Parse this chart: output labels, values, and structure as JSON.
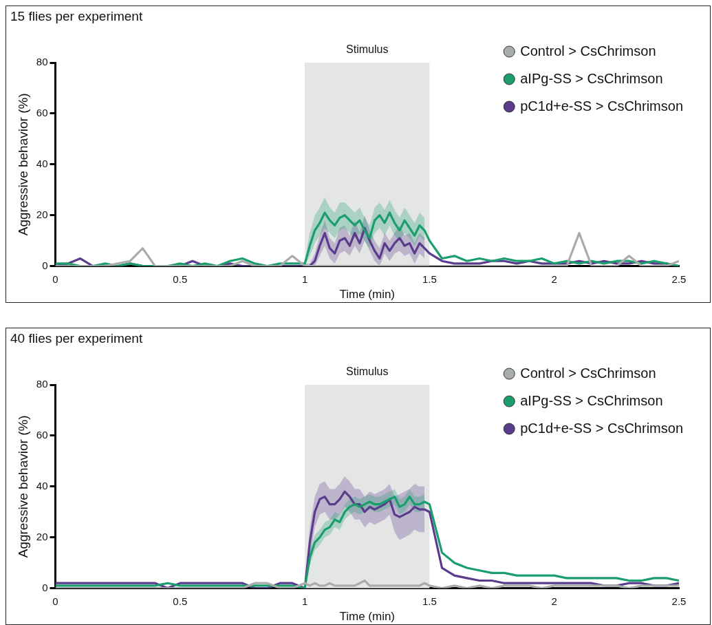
{
  "chart_data": [
    {
      "type": "line",
      "title": "15 flies per experiment",
      "xlabel": "Time (min)",
      "ylabel": "Aggressive behavior (%)",
      "x": [
        0,
        0.05,
        0.1,
        0.15,
        0.2,
        0.25,
        0.3,
        0.35,
        0.4,
        0.45,
        0.5,
        0.55,
        0.6,
        0.65,
        0.7,
        0.75,
        0.8,
        0.85,
        0.9,
        0.95,
        1,
        1.02,
        1.04,
        1.06,
        1.08,
        1.1,
        1.12,
        1.14,
        1.16,
        1.18,
        1.2,
        1.22,
        1.24,
        1.26,
        1.28,
        1.3,
        1.32,
        1.34,
        1.36,
        1.38,
        1.4,
        1.42,
        1.44,
        1.46,
        1.48,
        1.5,
        1.55,
        1.6,
        1.65,
        1.7,
        1.75,
        1.8,
        1.85,
        1.9,
        1.95,
        2,
        2.05,
        2.1,
        2.15,
        2.2,
        2.25,
        2.3,
        2.35,
        2.4,
        2.45,
        2.5
      ],
      "series": [
        {
          "name": "Control > CsChrimson",
          "color": "#a9ada9",
          "values": [
            0,
            0,
            0,
            0,
            0,
            1,
            2,
            7,
            0,
            0,
            0,
            0,
            0,
            0,
            0,
            2,
            0,
            0,
            0,
            4,
            0,
            0,
            0,
            0,
            0,
            0,
            0,
            0,
            0,
            0,
            0,
            0,
            0,
            0,
            0,
            0,
            0,
            0,
            0,
            0,
            0,
            0,
            0,
            0,
            0,
            0,
            0,
            0,
            0,
            0,
            0,
            0,
            0,
            0,
            0,
            0,
            0,
            13,
            0,
            0,
            0,
            4,
            0,
            0,
            0,
            2
          ]
        },
        {
          "name": "aIPg-SS > CsChrimson",
          "color": "#1a9e6e",
          "values": [
            1,
            1,
            0,
            0,
            1,
            0,
            1,
            0,
            0,
            0,
            1,
            0,
            1,
            0,
            2,
            3,
            1,
            0,
            1,
            1,
            1,
            8,
            14,
            17,
            21,
            18,
            16,
            19,
            20,
            18,
            16,
            18,
            14,
            11,
            18,
            20,
            17,
            21,
            17,
            14,
            18,
            15,
            12,
            16,
            14,
            10,
            3,
            4,
            2,
            3,
            2,
            3,
            2,
            2,
            3,
            1,
            2,
            1,
            2,
            1,
            2,
            2,
            1,
            2,
            1,
            0
          ],
          "lower": [
            null,
            null,
            null,
            null,
            null,
            null,
            null,
            null,
            null,
            null,
            null,
            null,
            null,
            null,
            null,
            null,
            null,
            null,
            null,
            null,
            0,
            4,
            9,
            12,
            15,
            13,
            11,
            14,
            15,
            13,
            11,
            13,
            10,
            7,
            13,
            15,
            12,
            16,
            12,
            10,
            13,
            11,
            8,
            12,
            10,
            null,
            null,
            null,
            null,
            null,
            null,
            null,
            null,
            null,
            null,
            null,
            null,
            null,
            null,
            null,
            null,
            null,
            null,
            null,
            null,
            null
          ],
          "upper": [
            null,
            null,
            null,
            null,
            null,
            null,
            null,
            null,
            null,
            null,
            null,
            null,
            null,
            null,
            null,
            null,
            null,
            null,
            null,
            null,
            2,
            13,
            20,
            23,
            27,
            23,
            21,
            25,
            25,
            23,
            21,
            23,
            19,
            16,
            23,
            25,
            22,
            26,
            22,
            19,
            23,
            20,
            17,
            21,
            19,
            null,
            null,
            null,
            null,
            null,
            null,
            null,
            null,
            null,
            null,
            null,
            null,
            null,
            null,
            null,
            null,
            null,
            null,
            null,
            null,
            null
          ]
        },
        {
          "name": "pC1d+e-SS > CsChrimson",
          "color": "#5b3b8c",
          "values": [
            0,
            1,
            3,
            0,
            0,
            0,
            1,
            0,
            0,
            0,
            0,
            2,
            0,
            0,
            1,
            0,
            0,
            0,
            0,
            0,
            0,
            0,
            2,
            8,
            13,
            7,
            5,
            10,
            11,
            8,
            13,
            9,
            15,
            10,
            6,
            3,
            9,
            6,
            9,
            11,
            8,
            9,
            5,
            9,
            7,
            5,
            2,
            1,
            1,
            1,
            2,
            2,
            1,
            2,
            1,
            1,
            1,
            2,
            1,
            2,
            1,
            1,
            2,
            1,
            1,
            0
          ],
          "lower": [
            null,
            null,
            null,
            null,
            null,
            null,
            null,
            null,
            null,
            null,
            null,
            null,
            null,
            null,
            null,
            null,
            null,
            null,
            null,
            null,
            0,
            0,
            0,
            4,
            8,
            3,
            1,
            5,
            6,
            4,
            8,
            5,
            10,
            6,
            2,
            0,
            5,
            2,
            5,
            6,
            4,
            5,
            1,
            5,
            3,
            null,
            null,
            null,
            null,
            null,
            null,
            null,
            null,
            null,
            null,
            null,
            null,
            null,
            null,
            null,
            null,
            null,
            null,
            null,
            null,
            null
          ],
          "upper": [
            null,
            null,
            null,
            null,
            null,
            null,
            null,
            null,
            null,
            null,
            null,
            null,
            null,
            null,
            null,
            null,
            null,
            null,
            null,
            null,
            1,
            1,
            5,
            12,
            18,
            11,
            9,
            15,
            16,
            12,
            18,
            13,
            20,
            14,
            10,
            7,
            13,
            10,
            13,
            16,
            12,
            13,
            9,
            13,
            11,
            null,
            null,
            null,
            null,
            null,
            null,
            null,
            null,
            null,
            null,
            null,
            null,
            null,
            null,
            null,
            null,
            null,
            null,
            null,
            null,
            null
          ]
        }
      ],
      "xlim": [
        0,
        2.5
      ],
      "xticks": [
        0,
        0.5,
        1,
        1.5,
        2,
        2.5
      ],
      "ylim": [
        0,
        80
      ],
      "yticks": [
        0,
        20,
        40,
        60,
        80
      ],
      "bands": [
        {
          "axis": "x",
          "from": 1,
          "to": 1.5,
          "label": "Stimulus",
          "color": "#e4e5e5"
        }
      ],
      "legend": "top right"
    },
    {
      "type": "line",
      "title": "40 flies per experiment",
      "xlabel": "Time (min)",
      "ylabel": "Aggressive behavior (%)",
      "x": [
        0,
        0.05,
        0.1,
        0.15,
        0.2,
        0.25,
        0.3,
        0.35,
        0.4,
        0.45,
        0.5,
        0.55,
        0.6,
        0.65,
        0.7,
        0.75,
        0.8,
        0.85,
        0.9,
        0.95,
        1,
        1.02,
        1.04,
        1.06,
        1.08,
        1.1,
        1.12,
        1.14,
        1.16,
        1.18,
        1.2,
        1.22,
        1.24,
        1.26,
        1.28,
        1.3,
        1.32,
        1.34,
        1.36,
        1.38,
        1.4,
        1.42,
        1.44,
        1.46,
        1.48,
        1.5,
        1.55,
        1.6,
        1.65,
        1.7,
        1.75,
        1.8,
        1.85,
        1.9,
        1.95,
        2,
        2.05,
        2.1,
        2.15,
        2.2,
        2.25,
        2.3,
        2.35,
        2.4,
        2.45,
        2.5
      ],
      "series": [
        {
          "name": "Control > CsChrimson",
          "color": "#a9ada9",
          "values": [
            0,
            0,
            0,
            0,
            0,
            0,
            0,
            0,
            0,
            0,
            0,
            0,
            0,
            0,
            0,
            0,
            2,
            2,
            0,
            0,
            2,
            1,
            2,
            1,
            1,
            2,
            1,
            1,
            1,
            1,
            1,
            2,
            3,
            1,
            1,
            1,
            1,
            1,
            1,
            1,
            1,
            1,
            1,
            1,
            2,
            1,
            0,
            1,
            0,
            1,
            0,
            1,
            1,
            1,
            0,
            1,
            1,
            1,
            1,
            1,
            1,
            0,
            1,
            1,
            1,
            1
          ]
        },
        {
          "name": "aIPg-SS > CsChrimson",
          "color": "#1a9e6e",
          "values": [
            1,
            1,
            1,
            1,
            1,
            1,
            1,
            1,
            1,
            2,
            1,
            1,
            1,
            1,
            1,
            1,
            1,
            1,
            1,
            1,
            0,
            12,
            18,
            20,
            23,
            24,
            27,
            26,
            30,
            32,
            33,
            32,
            33,
            34,
            33,
            33,
            34,
            35,
            36,
            32,
            33,
            36,
            33,
            33,
            34,
            33,
            14,
            10,
            8,
            7,
            6,
            6,
            5,
            5,
            5,
            5,
            4,
            4,
            4,
            4,
            4,
            3,
            3,
            4,
            4,
            3
          ],
          "lower": [
            null,
            null,
            null,
            null,
            null,
            null,
            null,
            null,
            null,
            null,
            null,
            null,
            null,
            null,
            null,
            null,
            null,
            null,
            null,
            null,
            0,
            9,
            15,
            17,
            20,
            21,
            24,
            23,
            27,
            29,
            30,
            29,
            30,
            31,
            30,
            30,
            31,
            32,
            33,
            29,
            30,
            33,
            30,
            30,
            31,
            null,
            null,
            null,
            null,
            null,
            null,
            null,
            null,
            null,
            null,
            null,
            null,
            null,
            null,
            null,
            null,
            null,
            null,
            null,
            null,
            null
          ],
          "upper": [
            null,
            null,
            null,
            null,
            null,
            null,
            null,
            null,
            null,
            null,
            null,
            null,
            null,
            null,
            null,
            null,
            null,
            null,
            null,
            null,
            1,
            15,
            21,
            23,
            26,
            27,
            30,
            29,
            33,
            35,
            36,
            35,
            36,
            37,
            36,
            36,
            37,
            38,
            39,
            35,
            36,
            39,
            36,
            36,
            37,
            null,
            null,
            null,
            null,
            null,
            null,
            null,
            null,
            null,
            null,
            null,
            null,
            null,
            null,
            null,
            null,
            null,
            null,
            null,
            null,
            null
          ]
        },
        {
          "name": "pC1d+e-SS > CsChrimson",
          "color": "#5b3b8c",
          "values": [
            2,
            2,
            2,
            2,
            2,
            2,
            2,
            2,
            2,
            0,
            2,
            2,
            2,
            2,
            2,
            2,
            0,
            0,
            2,
            2,
            0,
            18,
            30,
            35,
            36,
            33,
            33,
            35,
            38,
            36,
            33,
            33,
            30,
            32,
            31,
            32,
            33,
            35,
            29,
            28,
            29,
            30,
            32,
            31,
            31,
            30,
            8,
            5,
            4,
            3,
            3,
            2,
            2,
            2,
            2,
            2,
            2,
            2,
            2,
            1,
            1,
            2,
            2,
            1,
            1,
            2
          ],
          "lower": [
            null,
            null,
            null,
            null,
            null,
            null,
            null,
            null,
            null,
            null,
            null,
            null,
            null,
            null,
            null,
            null,
            null,
            null,
            null,
            null,
            0,
            12,
            24,
            29,
            30,
            27,
            27,
            29,
            32,
            30,
            27,
            27,
            24,
            26,
            25,
            26,
            27,
            29,
            22,
            19,
            20,
            21,
            23,
            22,
            22,
            null,
            null,
            null,
            null,
            null,
            null,
            null,
            null,
            null,
            null,
            null,
            null,
            null,
            null,
            null,
            null,
            null,
            null,
            null,
            null,
            null
          ],
          "upper": [
            null,
            null,
            null,
            null,
            null,
            null,
            null,
            null,
            null,
            null,
            null,
            null,
            null,
            null,
            null,
            null,
            null,
            null,
            null,
            null,
            1,
            24,
            36,
            41,
            42,
            39,
            39,
            41,
            44,
            42,
            39,
            39,
            36,
            38,
            37,
            38,
            39,
            41,
            36,
            37,
            38,
            39,
            41,
            40,
            40,
            null,
            null,
            null,
            null,
            null,
            null,
            null,
            null,
            null,
            null,
            null,
            null,
            null,
            null,
            null,
            null,
            null,
            null,
            null,
            null,
            null
          ]
        }
      ],
      "xlim": [
        0,
        2.5
      ],
      "xticks": [
        0,
        0.5,
        1,
        1.5,
        2,
        2.5
      ],
      "ylim": [
        0,
        80
      ],
      "yticks": [
        0,
        20,
        40,
        60,
        80
      ],
      "bands": [
        {
          "axis": "x",
          "from": 1,
          "to": 1.5,
          "label": "Stimulus",
          "color": "#e4e5e5"
        }
      ],
      "legend": "top right"
    }
  ]
}
